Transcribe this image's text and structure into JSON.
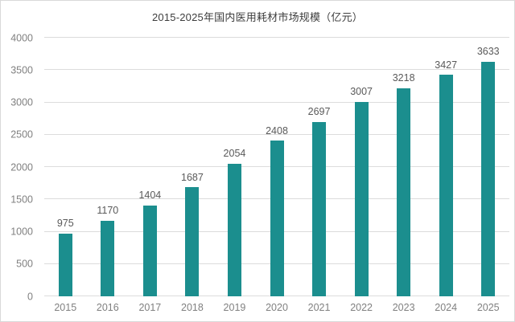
{
  "chart_data": {
    "type": "bar",
    "title": "2015-2025年国内医用耗材市场规模（亿元）",
    "categories": [
      "2015",
      "2016",
      "2017",
      "2018",
      "2019",
      "2020",
      "2021",
      "2022",
      "2023",
      "2024",
      "2025"
    ],
    "values": [
      975,
      1170,
      1404,
      1687,
      2054,
      2408,
      2697,
      3007,
      3218,
      3427,
      3633
    ],
    "xlabel": "",
    "ylabel": "",
    "ylim": [
      0,
      4000
    ],
    "yticks": [
      0,
      500,
      1000,
      1500,
      2000,
      2500,
      3000,
      3500,
      4000
    ],
    "grid": true,
    "legend_position": "none",
    "data_labels_shown": true
  },
  "colors": {
    "bar": "#1b8e8e",
    "gridline": "#dcdcdc",
    "axis_label": "#808080",
    "data_label": "#595959",
    "title": "#3d3d3d",
    "background": "#ffffff",
    "border": "#d9d9d9"
  }
}
